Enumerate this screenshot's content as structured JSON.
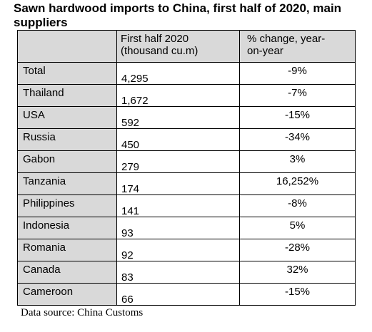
{
  "title": "Sawn hardwood imports to China, first half of 2020, main suppliers",
  "table": {
    "headers": {
      "country": "",
      "volume": "First half 2020 (thousand cu.m)",
      "change": "% change, year-on-year"
    },
    "rows": [
      {
        "country": "Total",
        "volume": "4,295",
        "change": "-9%"
      },
      {
        "country": "Thailand",
        "volume": "1,672",
        "change": "-7%"
      },
      {
        "country": "USA",
        "volume": "592",
        "change": "-15%"
      },
      {
        "country": "Russia",
        "volume": "450",
        "change": "-34%"
      },
      {
        "country": "Gabon",
        "volume": "279",
        "change": "3%"
      },
      {
        "country": "Tanzania",
        "volume": "174",
        "change": "16,252%"
      },
      {
        "country": "Philippines",
        "volume": "141",
        "change": "-8%"
      },
      {
        "country": "Indonesia",
        "volume": "93",
        "change": "5%"
      },
      {
        "country": "Romania",
        "volume": "92",
        "change": "-28%"
      },
      {
        "country": "Canada",
        "volume": "83",
        "change": "32%"
      },
      {
        "country": "Cameroon",
        "volume": "66",
        "change": "-15%"
      }
    ]
  },
  "source": "Data source: China Customs",
  "colors": {
    "header_fill": "#d9d9d9",
    "country_fill": "#d9d9d9",
    "border": "#000000"
  }
}
